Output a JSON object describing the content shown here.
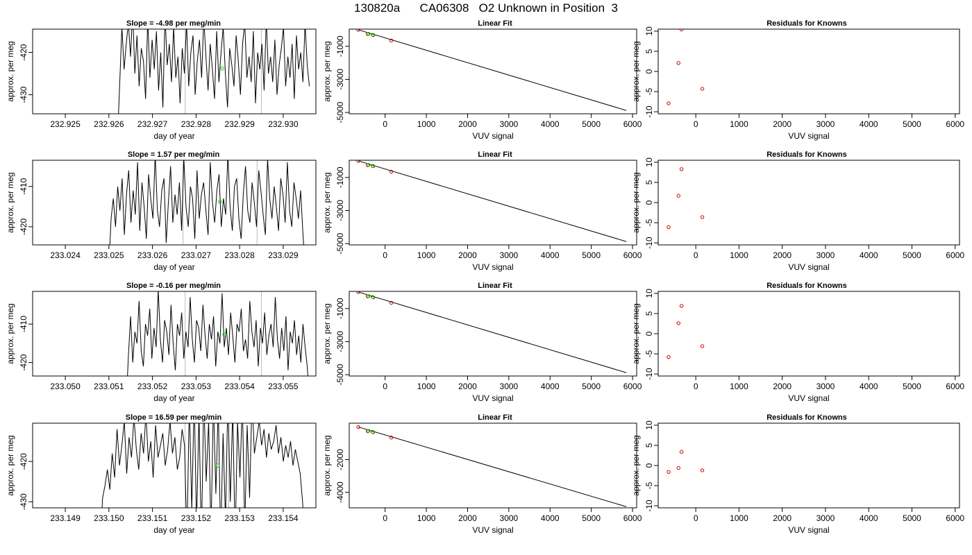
{
  "title": "130820a      CA06308   O2 Unknown in Position  3",
  "colors": {
    "trace": "#000000",
    "known": "#cc0000",
    "unknown": "#00cc00",
    "guide": "#bbbbbb"
  },
  "rows": [
    {
      "slope_title": "Slope =  -4.98  per meg/min",
      "fit_title": "Linear Fit",
      "resid_title": "Residuals for Knowns"
    },
    {
      "slope_title": "Slope =  1.57  per meg/min",
      "fit_title": "Linear Fit",
      "resid_title": "Residuals for Knowns"
    },
    {
      "slope_title": "Slope =  -0.16  per meg/min",
      "fit_title": "Linear Fit",
      "resid_title": "Residuals for Knowns"
    },
    {
      "slope_title": "Slope =  16.59  per meg/min",
      "fit_title": "Linear Fit",
      "resid_title": "Residuals for Knowns"
    }
  ],
  "chart_data": [
    {
      "type": "line",
      "title": "Slope =  -4.98  per meg/min",
      "xlabel": "day of year",
      "ylabel": "approx. per meg",
      "xlim": [
        232.92425,
        232.93075
      ],
      "ylim": [
        -434.5,
        -414.5
      ],
      "xticks": [
        "232.925",
        "232.926",
        "232.927",
        "232.928",
        "232.929",
        "232.930"
      ],
      "xtick_values": [
        232.925,
        232.926,
        232.927,
        232.928,
        232.929,
        232.93
      ],
      "yticks": [
        "-420",
        "-430"
      ],
      "ytick_values": [
        -420,
        -430
      ],
      "series": [
        {
          "x_start": 232.9262,
          "x_end": 232.9306,
          "values": [
            -440,
            -427,
            -414,
            -424,
            -418,
            -413,
            -421,
            -410,
            -425,
            -416,
            -428,
            -419,
            -422,
            -431,
            -412,
            -426,
            -417,
            -424,
            -415,
            -429,
            -420,
            -433,
            -411,
            -423,
            -418,
            -427,
            -414,
            -426,
            -421,
            -432,
            -419,
            -425,
            -413,
            -428,
            -420,
            -416,
            -430,
            -422,
            -417,
            -426,
            -412,
            -421,
            -429,
            -418,
            -424,
            -431,
            -415,
            -427,
            -420,
            -414,
            -425,
            -433,
            -419,
            -423,
            -428,
            -416,
            -422,
            -430,
            -418,
            -413,
            -426,
            -421,
            -427,
            -415,
            -432,
            -420,
            -424,
            -418,
            -429,
            -412,
            -425,
            -421,
            -427,
            -417,
            -430,
            -423,
            -419,
            -414,
            -428,
            -421,
            -426,
            -418,
            -431,
            -416,
            -424,
            -420,
            -427,
            -413,
            -423,
            -428
          ]
        }
      ],
      "guides": [
        232.92775,
        232.9295
      ],
      "unknown": {
        "x": 232.9286,
        "y": -423.8
      }
    },
    {
      "type": "line",
      "title": "Slope =  1.57  per meg/min",
      "xlabel": "day of year",
      "ylabel": "approx. per meg",
      "xlim": [
        233.02325,
        233.02975
      ],
      "ylim": [
        -424.5,
        -403.5
      ],
      "xticks": [
        "233.024",
        "233.025",
        "233.026",
        "233.027",
        "233.028",
        "233.029"
      ],
      "xtick_values": [
        233.024,
        233.025,
        233.026,
        233.027,
        233.028,
        233.029
      ],
      "yticks": [
        "-410",
        "-420"
      ],
      "ytick_values": [
        -410,
        -420
      ],
      "series": [
        {
          "x_start": 233.025,
          "x_end": 233.0295,
          "values": [
            -430,
            -418,
            -413,
            -420,
            -410,
            -416,
            -408,
            -422,
            -412,
            -406,
            -419,
            -411,
            -417,
            -404,
            -421,
            -409,
            -415,
            -423,
            -407,
            -413,
            -418,
            -402,
            -416,
            -420,
            -411,
            -408,
            -424,
            -414,
            -405,
            -419,
            -412,
            -417,
            -409,
            -421,
            -403,
            -415,
            -420,
            -410,
            -413,
            -423,
            -406,
            -418,
            -412,
            -409,
            -416,
            -422,
            -404,
            -414,
            -419,
            -411,
            -407,
            -420,
            -413,
            -417,
            -402,
            -415,
            -421,
            -410,
            -408,
            -418,
            -423,
            -412,
            -405,
            -416,
            -419,
            -409,
            -414,
            -420,
            -406,
            -411,
            -417,
            -422,
            -403,
            -413,
            -418,
            -410,
            -415,
            -421,
            -408,
            -412,
            -419,
            -404,
            -416,
            -420,
            -409,
            -413,
            -418,
            -411,
            -421,
            -430
          ]
        }
      ],
      "guides": [
        233.0267,
        233.0284
      ],
      "unknown": {
        "x": 233.02755,
        "y": -413.8
      }
    },
    {
      "type": "line",
      "title": "Slope =  -0.16  per meg/min",
      "xlabel": "day of year",
      "ylabel": "approx. per meg",
      "xlim": [
        233.04925,
        233.05575
      ],
      "ylim": [
        -423.5,
        -401.5
      ],
      "xticks": [
        "233.050",
        "233.051",
        "233.052",
        "233.053",
        "233.054",
        "233.055"
      ],
      "xtick_values": [
        233.05,
        233.051,
        233.052,
        233.053,
        233.054,
        233.055
      ],
      "yticks": [
        "-410",
        "-420"
      ],
      "ytick_values": [
        -410,
        -420
      ],
      "series": [
        {
          "x_start": 233.0514,
          "x_end": 233.0556,
          "values": [
            -430,
            -418,
            -408,
            -420,
            -412,
            -415,
            -404,
            -417,
            -421,
            -410,
            -413,
            -406,
            -419,
            -411,
            -416,
            -401,
            -414,
            -420,
            -409,
            -412,
            -418,
            -405,
            -415,
            -422,
            -410,
            -413,
            -407,
            -419,
            -412,
            -416,
            -403,
            -414,
            -420,
            -409,
            -411,
            -417,
            -405,
            -413,
            -419,
            -410,
            -414,
            -408,
            -421,
            -412,
            -415,
            -402,
            -416,
            -411,
            -418,
            -407,
            -413,
            -420,
            -410,
            -412,
            -406,
            -417,
            -414,
            -419,
            -404,
            -412,
            -416,
            -409,
            -421,
            -411,
            -415,
            -407,
            -418,
            -413,
            -410,
            -416,
            -403,
            -414,
            -419,
            -411,
            -417,
            -408,
            -422,
            -412,
            -415,
            -409,
            -418,
            -413,
            -420,
            -410,
            -416,
            -421,
            -430
          ]
        }
      ],
      "guides": [
        233.05275,
        233.0545
      ],
      "unknown": {
        "x": 233.05365,
        "y": -412.7
      }
    },
    {
      "type": "line",
      "title": "Slope =  16.59  per meg/min",
      "xlabel": "day of year",
      "ylabel": "approx. per meg",
      "xlim": [
        233.14825,
        233.15475
      ],
      "ylim": [
        -431.5,
        -410.5
      ],
      "xticks": [
        "233.149",
        "233.150",
        "233.151",
        "233.152",
        "233.153",
        "233.154"
      ],
      "xtick_values": [
        233.149,
        233.15,
        233.151,
        233.152,
        233.153,
        233.154
      ],
      "yticks": [
        "-420",
        "-430"
      ],
      "ytick_values": [
        -420,
        -430
      ],
      "series": [
        {
          "x_start": 233.1498,
          "x_end": 233.1545,
          "values": [
            -440,
            -429,
            -426,
            -422,
            -427,
            -418,
            -424,
            -412,
            -421,
            -416,
            -410,
            -423,
            -414,
            -419,
            -409,
            -417,
            -422,
            -413,
            -418,
            -408,
            -420,
            -415,
            -424,
            -411,
            -419,
            -416,
            -413,
            -421,
            -417,
            -410,
            -418,
            -414,
            -422,
            -419,
            -412,
            -416,
            -440,
            -405,
            -432,
            -404,
            -436,
            -408,
            -440,
            -404,
            -425,
            -410,
            -438,
            -405,
            -428,
            -406,
            -440,
            -413,
            -435,
            -404,
            -430,
            -407,
            -440,
            -410,
            -424,
            -405,
            -437,
            -411,
            -429,
            -404,
            -418,
            -414,
            -410,
            -416,
            -412,
            -419,
            -413,
            -417,
            -415,
            -411,
            -418,
            -414,
            -420,
            -416,
            -419,
            -415,
            -421,
            -417,
            -420,
            -423,
            -430,
            -440
          ]
        }
      ],
      "guides": [
        233.15175,
        233.15275
      ],
      "unknown": {
        "x": 233.1525,
        "y": -421.0
      }
    },
    {
      "type": "line",
      "title": "Linear Fit",
      "xlabel": "VUV signal",
      "ylabel": "approx. per meg",
      "xlim": [
        -870,
        6100
      ],
      "ylim": [
        -5080,
        40
      ],
      "xticks": [
        "0",
        "1000",
        "2000",
        "3000",
        "4000",
        "5000",
        "6000"
      ],
      "xtick_values": [
        0,
        1000,
        2000,
        3000,
        4000,
        5000,
        6000
      ],
      "yticks": [
        "-1000",
        "-3000",
        "-5000"
      ],
      "ytick_values": [
        -1000,
        -3000,
        -5000
      ],
      "line": [
        [
          -650,
          0
        ],
        [
          5850,
          -4880
        ]
      ],
      "knowns": [
        [
          -650,
          0
        ],
        [
          -420,
          -260
        ],
        [
          -290,
          -320
        ],
        [
          150,
          -650
        ]
      ],
      "unknowns": [
        [
          -400,
          -240
        ],
        [
          -300,
          -300
        ]
      ]
    },
    {
      "type": "line",
      "title": "Linear Fit",
      "xlabel": "VUV signal",
      "ylabel": "approx. per meg",
      "xlim": [
        -870,
        6100
      ],
      "ylim": [
        -5080,
        40
      ],
      "xticks": [
        "0",
        "1000",
        "2000",
        "3000",
        "4000",
        "5000",
        "6000"
      ],
      "xtick_values": [
        0,
        1000,
        2000,
        3000,
        4000,
        5000,
        6000
      ],
      "yticks": [
        "-1000",
        "-3000",
        "-5000"
      ],
      "ytick_values": [
        -1000,
        -3000,
        -5000
      ],
      "line": [
        [
          -650,
          0
        ],
        [
          5850,
          -4880
        ]
      ],
      "knowns": [
        [
          -650,
          0
        ],
        [
          -420,
          -260
        ],
        [
          -290,
          -320
        ],
        [
          150,
          -650
        ]
      ],
      "unknowns": [
        [
          -400,
          -240
        ],
        [
          -300,
          -300
        ]
      ]
    },
    {
      "type": "line",
      "title": "Linear Fit",
      "xlabel": "VUV signal",
      "ylabel": "approx. per meg",
      "xlim": [
        -870,
        6100
      ],
      "ylim": [
        -5080,
        40
      ],
      "xticks": [
        "0",
        "1000",
        "2000",
        "3000",
        "4000",
        "5000",
        "6000"
      ],
      "xtick_values": [
        0,
        1000,
        2000,
        3000,
        4000,
        5000,
        6000
      ],
      "yticks": [
        "-1000",
        "-3000",
        "-5000"
      ],
      "ytick_values": [
        -1000,
        -3000,
        -5000
      ],
      "line": [
        [
          -650,
          0
        ],
        [
          5850,
          -4880
        ]
      ],
      "knowns": [
        [
          -650,
          0
        ],
        [
          -420,
          -260
        ],
        [
          -290,
          -320
        ],
        [
          150,
          -650
        ]
      ],
      "unknowns": [
        [
          -400,
          -240
        ],
        [
          -300,
          -300
        ]
      ]
    },
    {
      "type": "line",
      "title": "Linear Fit",
      "xlabel": "VUV signal",
      "ylabel": "approx. per meg",
      "xlim": [
        -870,
        6100
      ],
      "ylim": [
        -4950,
        230
      ],
      "xticks": [
        "0",
        "1000",
        "2000",
        "3000",
        "4000",
        "5000",
        "6000"
      ],
      "xtick_values": [
        0,
        1000,
        2000,
        3000,
        4000,
        5000,
        6000
      ],
      "yticks": [
        "-2000",
        "-4000"
      ],
      "ytick_values": [
        -2000,
        -4000
      ],
      "line": [
        [
          -650,
          0
        ],
        [
          5850,
          -4880
        ]
      ],
      "knowns": [
        [
          -650,
          0
        ],
        [
          -420,
          -260
        ],
        [
          -290,
          -320
        ],
        [
          150,
          -650
        ]
      ],
      "unknowns": [
        [
          -400,
          -240
        ],
        [
          -300,
          -300
        ]
      ]
    },
    {
      "type": "scatter",
      "title": "Residuals for Knowns",
      "xlabel": "VUV signal",
      "ylabel": "approx. per meg",
      "xlim": [
        -870,
        6100
      ],
      "ylim": [
        -10.5,
        10.5
      ],
      "xticks": [
        "0",
        "1000",
        "2000",
        "3000",
        "4000",
        "5000",
        "6000"
      ],
      "xtick_values": [
        0,
        1000,
        2000,
        3000,
        4000,
        5000,
        6000
      ],
      "yticks": [
        "10",
        "5",
        "0",
        "-5",
        "-10"
      ],
      "ytick_values": [
        10,
        5,
        0,
        -5,
        -10
      ],
      "points": [
        [
          -630,
          -7.9
        ],
        [
          -400,
          2.1
        ],
        [
          -330,
          10.4
        ],
        [
          150,
          -4.3
        ]
      ]
    },
    {
      "type": "scatter",
      "title": "Residuals for Knowns",
      "xlabel": "VUV signal",
      "ylabel": "approx. per meg",
      "xlim": [
        -870,
        6100
      ],
      "ylim": [
        -10.5,
        10.5
      ],
      "xticks": [
        "0",
        "1000",
        "2000",
        "3000",
        "4000",
        "5000",
        "6000"
      ],
      "xtick_values": [
        0,
        1000,
        2000,
        3000,
        4000,
        5000,
        6000
      ],
      "yticks": [
        "10",
        "5",
        "0",
        "-5",
        "-10"
      ],
      "ytick_values": [
        10,
        5,
        0,
        -5,
        -10
      ],
      "points": [
        [
          -630,
          -6.1
        ],
        [
          -400,
          1.7
        ],
        [
          -330,
          8.3
        ],
        [
          150,
          -3.6
        ]
      ]
    },
    {
      "type": "scatter",
      "title": "Residuals for Knowns",
      "xlabel": "VUV signal",
      "ylabel": "approx. per meg",
      "xlim": [
        -870,
        6100
      ],
      "ylim": [
        -10.5,
        10.5
      ],
      "xticks": [
        "0",
        "1000",
        "2000",
        "3000",
        "4000",
        "5000",
        "6000"
      ],
      "xtick_values": [
        0,
        1000,
        2000,
        3000,
        4000,
        5000,
        6000
      ],
      "yticks": [
        "10",
        "5",
        "0",
        "-5",
        "-10"
      ],
      "ytick_values": [
        10,
        5,
        0,
        -5,
        -10
      ],
      "points": [
        [
          -630,
          -5.8
        ],
        [
          -400,
          2.6
        ],
        [
          -330,
          6.9
        ],
        [
          150,
          -3.1
        ]
      ]
    },
    {
      "type": "scatter",
      "title": "Residuals for Knowns",
      "xlabel": "VUV signal",
      "ylabel": "approx. per meg",
      "xlim": [
        -870,
        6100
      ],
      "ylim": [
        -10.5,
        10.5
      ],
      "xticks": [
        "0",
        "1000",
        "2000",
        "3000",
        "4000",
        "5000",
        "6000"
      ],
      "xtick_values": [
        0,
        1000,
        2000,
        3000,
        4000,
        5000,
        6000
      ],
      "yticks": [
        "10",
        "5",
        "0",
        "-5",
        "-10"
      ],
      "ytick_values": [
        10,
        5,
        0,
        -5,
        -10
      ],
      "points": [
        [
          -630,
          -1.6
        ],
        [
          -400,
          -0.6
        ],
        [
          -330,
          3.4
        ],
        [
          150,
          -1.2
        ]
      ]
    }
  ]
}
